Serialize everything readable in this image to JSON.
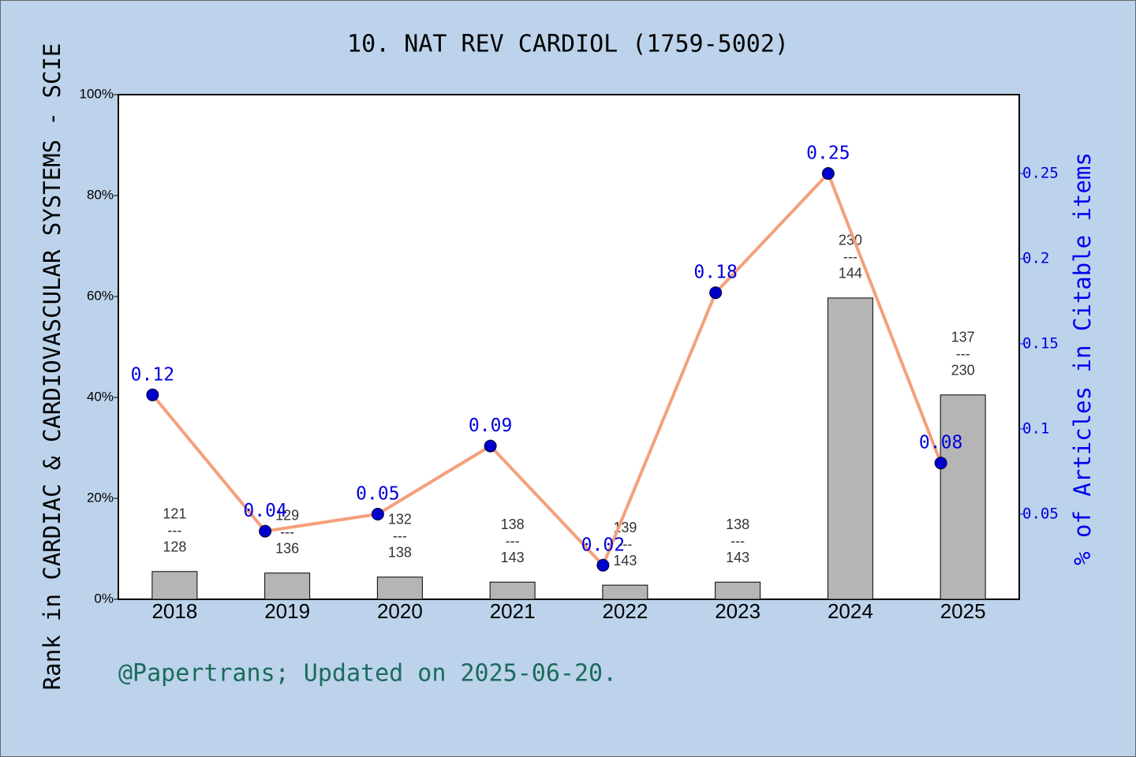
{
  "chart_data": {
    "type": "combo",
    "title": "10. NAT REV CARDIOL (1759-5002)",
    "ylabel": "Rank in CARDIAC & CARDIOVASCULAR SYSTEMS - SCIE",
    "y2label": "% of Articles in Citable items",
    "note": "@Papertrans; Updated on 2025-06-20.",
    "categories": [
      "2018",
      "2019",
      "2020",
      "2021",
      "2022",
      "2023",
      "2024",
      "2025"
    ],
    "ylim": [
      0,
      100
    ],
    "yticks": [
      {
        "value": 0,
        "label": "0%"
      },
      {
        "value": 20,
        "label": "20%"
      },
      {
        "value": 40,
        "label": "40%"
      },
      {
        "value": 60,
        "label": "60%"
      },
      {
        "value": 80,
        "label": "80%"
      },
      {
        "value": 100,
        "label": "100%"
      }
    ],
    "y2lim": [
      0,
      0.2963
    ],
    "y2ticks": [
      0.05,
      0.1,
      0.15,
      0.2,
      0.25
    ],
    "series": [
      {
        "type": "bar",
        "color": "#b5b5b5",
        "values": [
          5.5,
          5.2,
          4.4,
          3.4,
          2.8,
          3.4,
          59.7,
          40.5
        ],
        "bar_labels": [
          [
            "121",
            "---",
            "128"
          ],
          [
            "129",
            "---",
            "136"
          ],
          [
            "132",
            "---",
            "138"
          ],
          [
            "138",
            "---",
            "143"
          ],
          [
            "139",
            "---",
            "143"
          ],
          [
            "138",
            "---",
            "143"
          ],
          [
            "230",
            "---",
            "144"
          ],
          [
            "137",
            "---",
            "230"
          ]
        ]
      },
      {
        "type": "line",
        "axis": "y2",
        "color": "#f4a07c",
        "marker_color": "#0000cc",
        "values": [
          0.12,
          0.04,
          0.05,
          0.09,
          0.02,
          0.18,
          0.25,
          0.08
        ]
      }
    ]
  }
}
